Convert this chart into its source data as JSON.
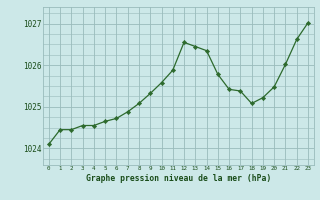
{
  "x": [
    0,
    1,
    2,
    3,
    4,
    5,
    6,
    7,
    8,
    9,
    10,
    11,
    12,
    13,
    14,
    15,
    16,
    17,
    18,
    19,
    20,
    21,
    22,
    23
  ],
  "y": [
    1024.1,
    1024.45,
    1024.45,
    1024.55,
    1024.55,
    1024.65,
    1024.72,
    1024.88,
    1025.08,
    1025.32,
    1025.58,
    1025.88,
    1026.55,
    1026.45,
    1026.35,
    1025.78,
    1025.42,
    1025.38,
    1025.08,
    1025.22,
    1025.48,
    1026.02,
    1026.62,
    1027.02
  ],
  "line_color": "#2d6a2d",
  "marker_color": "#2d6a2d",
  "bg_color": "#cce8e8",
  "grid_color": "#99bbbb",
  "xlabel": "Graphe pression niveau de la mer (hPa)",
  "xlabel_color": "#1a4d1a",
  "tick_color": "#1a4d1a",
  "yticks": [
    1024,
    1025,
    1026,
    1027
  ],
  "ylim": [
    1023.6,
    1027.4
  ],
  "xlim": [
    -0.5,
    23.5
  ],
  "xticks": [
    0,
    1,
    2,
    3,
    4,
    5,
    6,
    7,
    8,
    9,
    10,
    11,
    12,
    13,
    14,
    15,
    16,
    17,
    18,
    19,
    20,
    21,
    22,
    23
  ]
}
